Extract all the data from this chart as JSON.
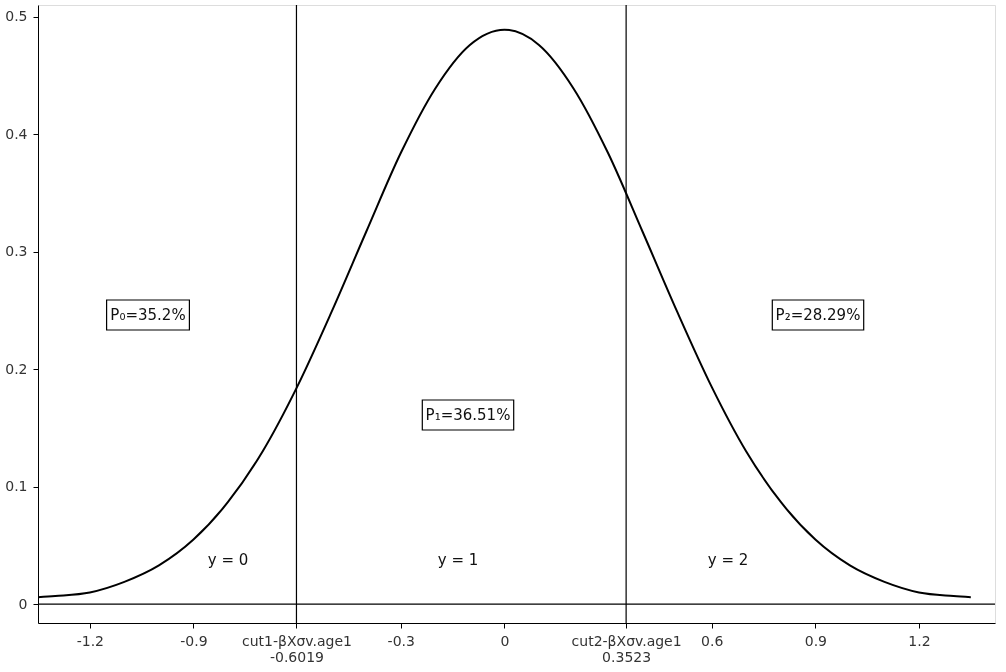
{
  "chart_data": {
    "type": "line",
    "x": [
      -1.35,
      -1.3,
      -1.2,
      -1.1,
      -1.0,
      -0.9,
      -0.8,
      -0.7,
      -0.6,
      -0.5,
      -0.4,
      -0.3,
      -0.2,
      -0.1,
      0,
      0.1,
      0.2,
      0.3,
      0.4,
      0.5,
      0.6,
      0.7,
      0.8,
      0.9,
      1.0,
      1.1,
      1.2,
      1.3,
      1.35
    ],
    "series": [
      {
        "color": "#000000",
        "values": [
          0.006,
          0.007,
          0.01,
          0.019,
          0.033,
          0.055,
          0.087,
          0.13,
          0.185,
          0.249,
          0.317,
          0.384,
          0.439,
          0.476,
          0.489,
          0.476,
          0.439,
          0.384,
          0.317,
          0.249,
          0.185,
          0.13,
          0.087,
          0.055,
          0.033,
          0.019,
          0.01,
          0.007,
          0.006
        ]
      }
    ],
    "xlim": [
      -1.35,
      1.42
    ],
    "ylim": [
      -0.016,
      0.51
    ],
    "xticks": [
      -1.2,
      -0.9,
      {
        "value": -0.6019,
        "label": "cut1-βXσv.age1\n-0.6019"
      },
      -0.3,
      0,
      {
        "value": 0.3523,
        "label": "cut2-βXσv.age1\n0.3523"
      },
      0.6,
      0.9,
      1.2
    ],
    "yticks": [
      0,
      0.1,
      0.2,
      0.3,
      0.4,
      0.5
    ],
    "ref_lines": [
      {
        "axis": "x",
        "value": -0.6019,
        "color": "#000000"
      },
      {
        "axis": "x",
        "value": 0.3523,
        "color": "#000000"
      },
      {
        "axis": "y",
        "value": 0,
        "color": "#000000"
      }
    ],
    "annotations": [
      "P₀=35.2%",
      "P₁=36.51%",
      "P₂=28.29%",
      "y = 0",
      "y = 1",
      "y = 2"
    ],
    "grid": false,
    "marker": "none",
    "line_style": "solid"
  }
}
